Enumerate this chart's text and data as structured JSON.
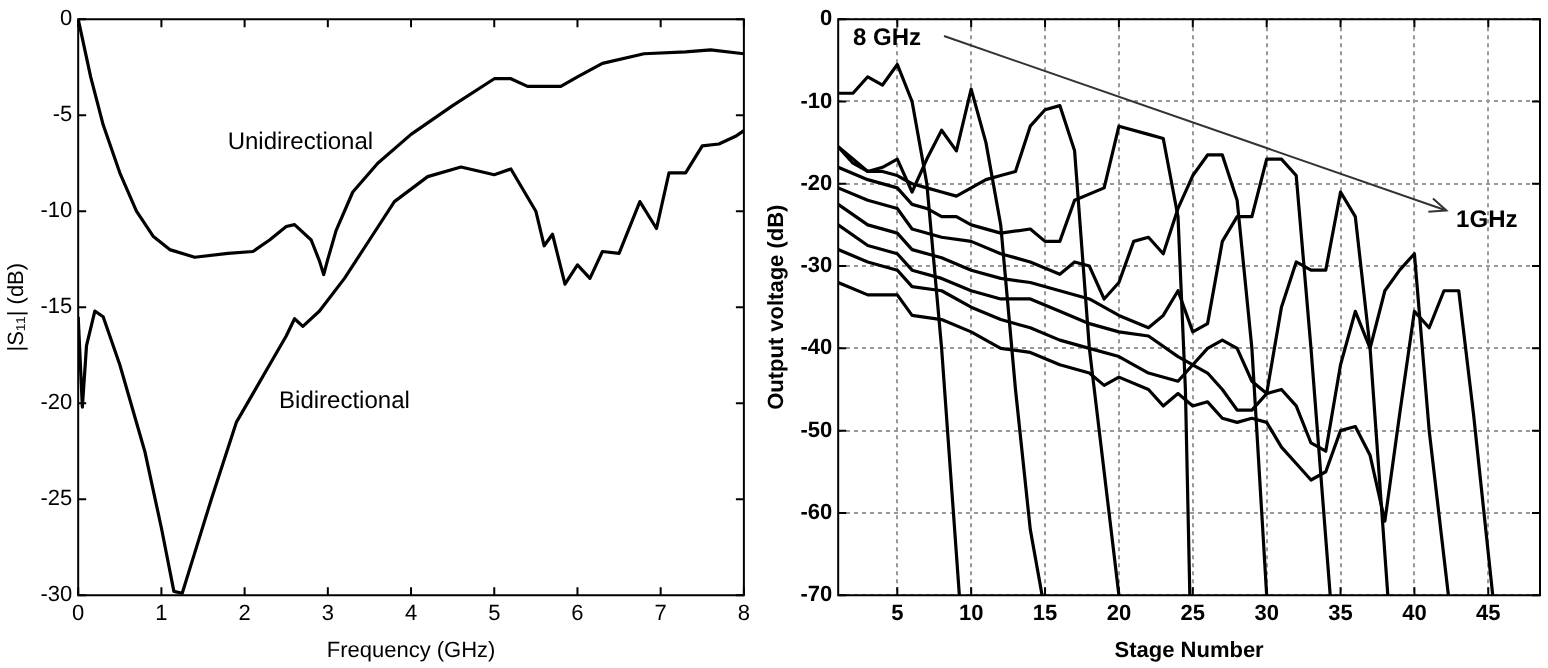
{
  "chart_data": [
    {
      "type": "line",
      "xlabel": "Frequency (GHz)",
      "ylabel": "|S₁₁| (dB)",
      "xlim": [
        0,
        8
      ],
      "xticks": [
        0,
        1,
        2,
        3,
        4,
        5,
        6,
        7,
        8
      ],
      "ylim": [
        -30,
        0
      ],
      "yticks": [
        -30,
        -25,
        -20,
        -15,
        -10,
        -5,
        0
      ],
      "grid": false,
      "legend": false,
      "marker": "none",
      "line_style": "solid",
      "series": [
        {
          "name": "Unidirectional",
          "color": "#000000",
          "x": [
            0,
            0.05,
            0.15,
            0.3,
            0.5,
            0.7,
            0.9,
            1.1,
            1.4,
            1.8,
            2.1,
            2.3,
            2.5,
            2.6,
            2.8,
            2.9,
            2.95,
            3.0,
            3.1,
            3.3,
            3.6,
            4,
            4.5,
            5,
            5.2,
            5.4,
            5.8,
            6,
            6.3,
            6.8,
            7.3,
            7.6,
            8
          ],
          "values": [
            0,
            -1,
            -3,
            -5.5,
            -8,
            -10,
            -11.3,
            -12,
            -12.4,
            -12.2,
            -12.1,
            -11.5,
            -10.8,
            -10.7,
            -11.5,
            -12.6,
            -13.3,
            -12.5,
            -11,
            -9,
            -7.5,
            -6,
            -4.5,
            -3.1,
            -3.1,
            -3.5,
            -3.5,
            -3,
            -2.3,
            -1.8,
            -1.7,
            -1.6,
            -1.8
          ]
        },
        {
          "name": "Bidirectional",
          "color": "#000000",
          "x": [
            0,
            0.05,
            0.1,
            0.2,
            0.3,
            0.5,
            0.8,
            1.0,
            1.15,
            1.25,
            1.35,
            1.6,
            1.9,
            2.1,
            2.3,
            2.5,
            2.6,
            2.7,
            2.9,
            3.2,
            3.5,
            3.8,
            4.2,
            4.6,
            5.0,
            5.2,
            5.5,
            5.6,
            5.7,
            5.85,
            6.0,
            6.15,
            6.3,
            6.5,
            6.75,
            6.95,
            7.1,
            7.3,
            7.5,
            7.7,
            7.9,
            8
          ],
          "values": [
            -15.5,
            -20.2,
            -17,
            -15.2,
            -15.5,
            -18,
            -22.5,
            -26.5,
            -29.8,
            -29.9,
            -28.5,
            -25,
            -21,
            -19.5,
            -18,
            -16.5,
            -15.6,
            -16,
            -15.2,
            -13.5,
            -11.5,
            -9.5,
            -8.2,
            -7.7,
            -8.1,
            -7.8,
            -10,
            -11.8,
            -11.2,
            -13.8,
            -12.8,
            -13.5,
            -12.1,
            -12.2,
            -9.5,
            -10.9,
            -8,
            -8,
            -6.6,
            -6.5,
            -6.1,
            -5.8
          ]
        }
      ]
    },
    {
      "type": "line",
      "xlabel": "Stage Number",
      "ylabel": "Output voltage (dB)",
      "xlim": [
        1,
        48.5
      ],
      "xticks": [
        5,
        10,
        15,
        20,
        25,
        30,
        35,
        40,
        45
      ],
      "ylim": [
        -70,
        0
      ],
      "yticks": [
        -70,
        -60,
        -50,
        -40,
        -30,
        -20,
        -10,
        0
      ],
      "grid": true,
      "legend": false,
      "marker": "none",
      "line_style": "solid",
      "annotations": [
        "8 GHz",
        "1GHz"
      ],
      "series": [
        {
          "color": "#000000",
          "x": [
            1,
            2,
            3,
            4,
            5,
            6,
            7,
            8,
            9.2
          ],
          "values": [
            -9,
            -9,
            -7,
            -8,
            -5.5,
            -10,
            -20,
            -40,
            -70
          ]
        },
        {
          "color": "#000000",
          "x": [
            1,
            2,
            3,
            4,
            5,
            6,
            7,
            8,
            9,
            10,
            11,
            12,
            13,
            14,
            14.8
          ],
          "values": [
            -15.5,
            -17,
            -18.5,
            -18,
            -17,
            -21,
            -17,
            -13.5,
            -16,
            -8.5,
            -15,
            -25,
            -45,
            -62,
            -70
          ]
        },
        {
          "color": "#000000",
          "x": [
            1,
            2,
            3,
            4,
            5,
            6,
            7,
            8,
            9,
            10,
            11,
            12,
            13,
            14,
            15,
            16,
            17,
            18,
            20
          ],
          "values": [
            -15.5,
            -17.5,
            -18.5,
            -18.5,
            -19,
            -20,
            -20.5,
            -21,
            -21.5,
            -20.5,
            -19.5,
            -19,
            -18.5,
            -13,
            -11,
            -10.5,
            -16,
            -40,
            -70
          ]
        },
        {
          "color": "#000000",
          "x": [
            1,
            3,
            5,
            6,
            7,
            8,
            9,
            10,
            12,
            14,
            15,
            16,
            17,
            19,
            20,
            22,
            23,
            24,
            24.5,
            24.8
          ],
          "values": [
            -18,
            -19.5,
            -20.5,
            -22.5,
            -23,
            -24,
            -24,
            -25,
            -26,
            -25.5,
            -27,
            -27,
            -22,
            -20.5,
            -13,
            -14,
            -14.5,
            -24,
            -45,
            -70
          ]
        },
        {
          "color": "#000000",
          "x": [
            1,
            3,
            5,
            6,
            8,
            10,
            12,
            14,
            16,
            17,
            18,
            19,
            20,
            21,
            22,
            23,
            24,
            25,
            26,
            27,
            28,
            29,
            30
          ],
          "values": [
            -20.5,
            -22,
            -23,
            -25.5,
            -26.5,
            -27,
            -28.5,
            -29.5,
            -31,
            -29.5,
            -30,
            -34,
            -32,
            -27,
            -26.5,
            -28.5,
            -23,
            -19,
            -16.5,
            -16.5,
            -22,
            -40,
            -70
          ]
        },
        {
          "color": "#000000",
          "x": [
            1,
            3,
            5,
            6,
            8,
            10,
            12,
            14,
            16,
            18,
            20,
            22,
            23,
            24,
            25,
            26,
            27,
            28,
            29,
            30,
            31,
            32,
            33,
            34.3
          ],
          "values": [
            -22.5,
            -25,
            -26,
            -28,
            -29,
            -30.5,
            -31.5,
            -32,
            -33,
            -34,
            -36,
            -37.5,
            -36,
            -33,
            -38,
            -37,
            -27,
            -24,
            -24,
            -17,
            -17,
            -19,
            -40,
            -70
          ]
        },
        {
          "color": "#000000",
          "x": [
            1,
            3,
            5,
            6,
            8,
            10,
            12,
            14,
            16,
            18,
            20,
            22,
            24,
            25,
            26,
            27,
            28,
            29,
            30,
            31,
            32,
            33,
            34,
            35,
            36,
            37,
            38.2
          ],
          "values": [
            -25,
            -27.5,
            -28.5,
            -30.5,
            -31.5,
            -33,
            -34,
            -34,
            -35.5,
            -37,
            -38,
            -38.5,
            -41,
            -42,
            -40,
            -39,
            -40,
            -44,
            -45.5,
            -35,
            -29.5,
            -30.5,
            -30.5,
            -21,
            -24,
            -40,
            -70
          ]
        },
        {
          "color": "#000000",
          "x": [
            1,
            3,
            5,
            6,
            8,
            10,
            12,
            14,
            16,
            18,
            20,
            22,
            24,
            25,
            26,
            27,
            28,
            29,
            30,
            31,
            32,
            33,
            34,
            35,
            36,
            37,
            38,
            39,
            40,
            41,
            42.3
          ],
          "values": [
            -28,
            -29.5,
            -30.5,
            -32.5,
            -33,
            -35,
            -36.5,
            -37.5,
            -39,
            -40,
            -41,
            -43,
            -44,
            -42,
            -43,
            -45,
            -47.5,
            -47.5,
            -45.5,
            -45,
            -47,
            -51.5,
            -52.5,
            -42,
            -35.5,
            -40,
            -33,
            -30.5,
            -28.5,
            -50,
            -70
          ]
        },
        {
          "color": "#000000",
          "x": [
            1,
            3,
            5,
            6,
            8,
            10,
            12,
            14,
            16,
            18,
            19,
            20,
            22,
            23,
            24,
            25,
            26,
            27,
            28,
            29,
            30,
            31,
            32,
            33,
            34,
            35,
            36,
            37,
            38,
            39,
            40,
            41,
            42,
            43,
            44,
            45.3
          ],
          "values": [
            -32,
            -33.5,
            -33.5,
            -36,
            -36.5,
            -38,
            -40,
            -40.5,
            -42,
            -43,
            -44.5,
            -43.5,
            -45,
            -47,
            -45.5,
            -47,
            -46.5,
            -48.5,
            -49,
            -48.5,
            -49,
            -52,
            -54,
            -56,
            -55,
            -50,
            -49.5,
            -53,
            -61,
            -48,
            -35.5,
            -37.5,
            -33,
            -33,
            -48,
            -70
          ]
        }
      ]
    }
  ]
}
